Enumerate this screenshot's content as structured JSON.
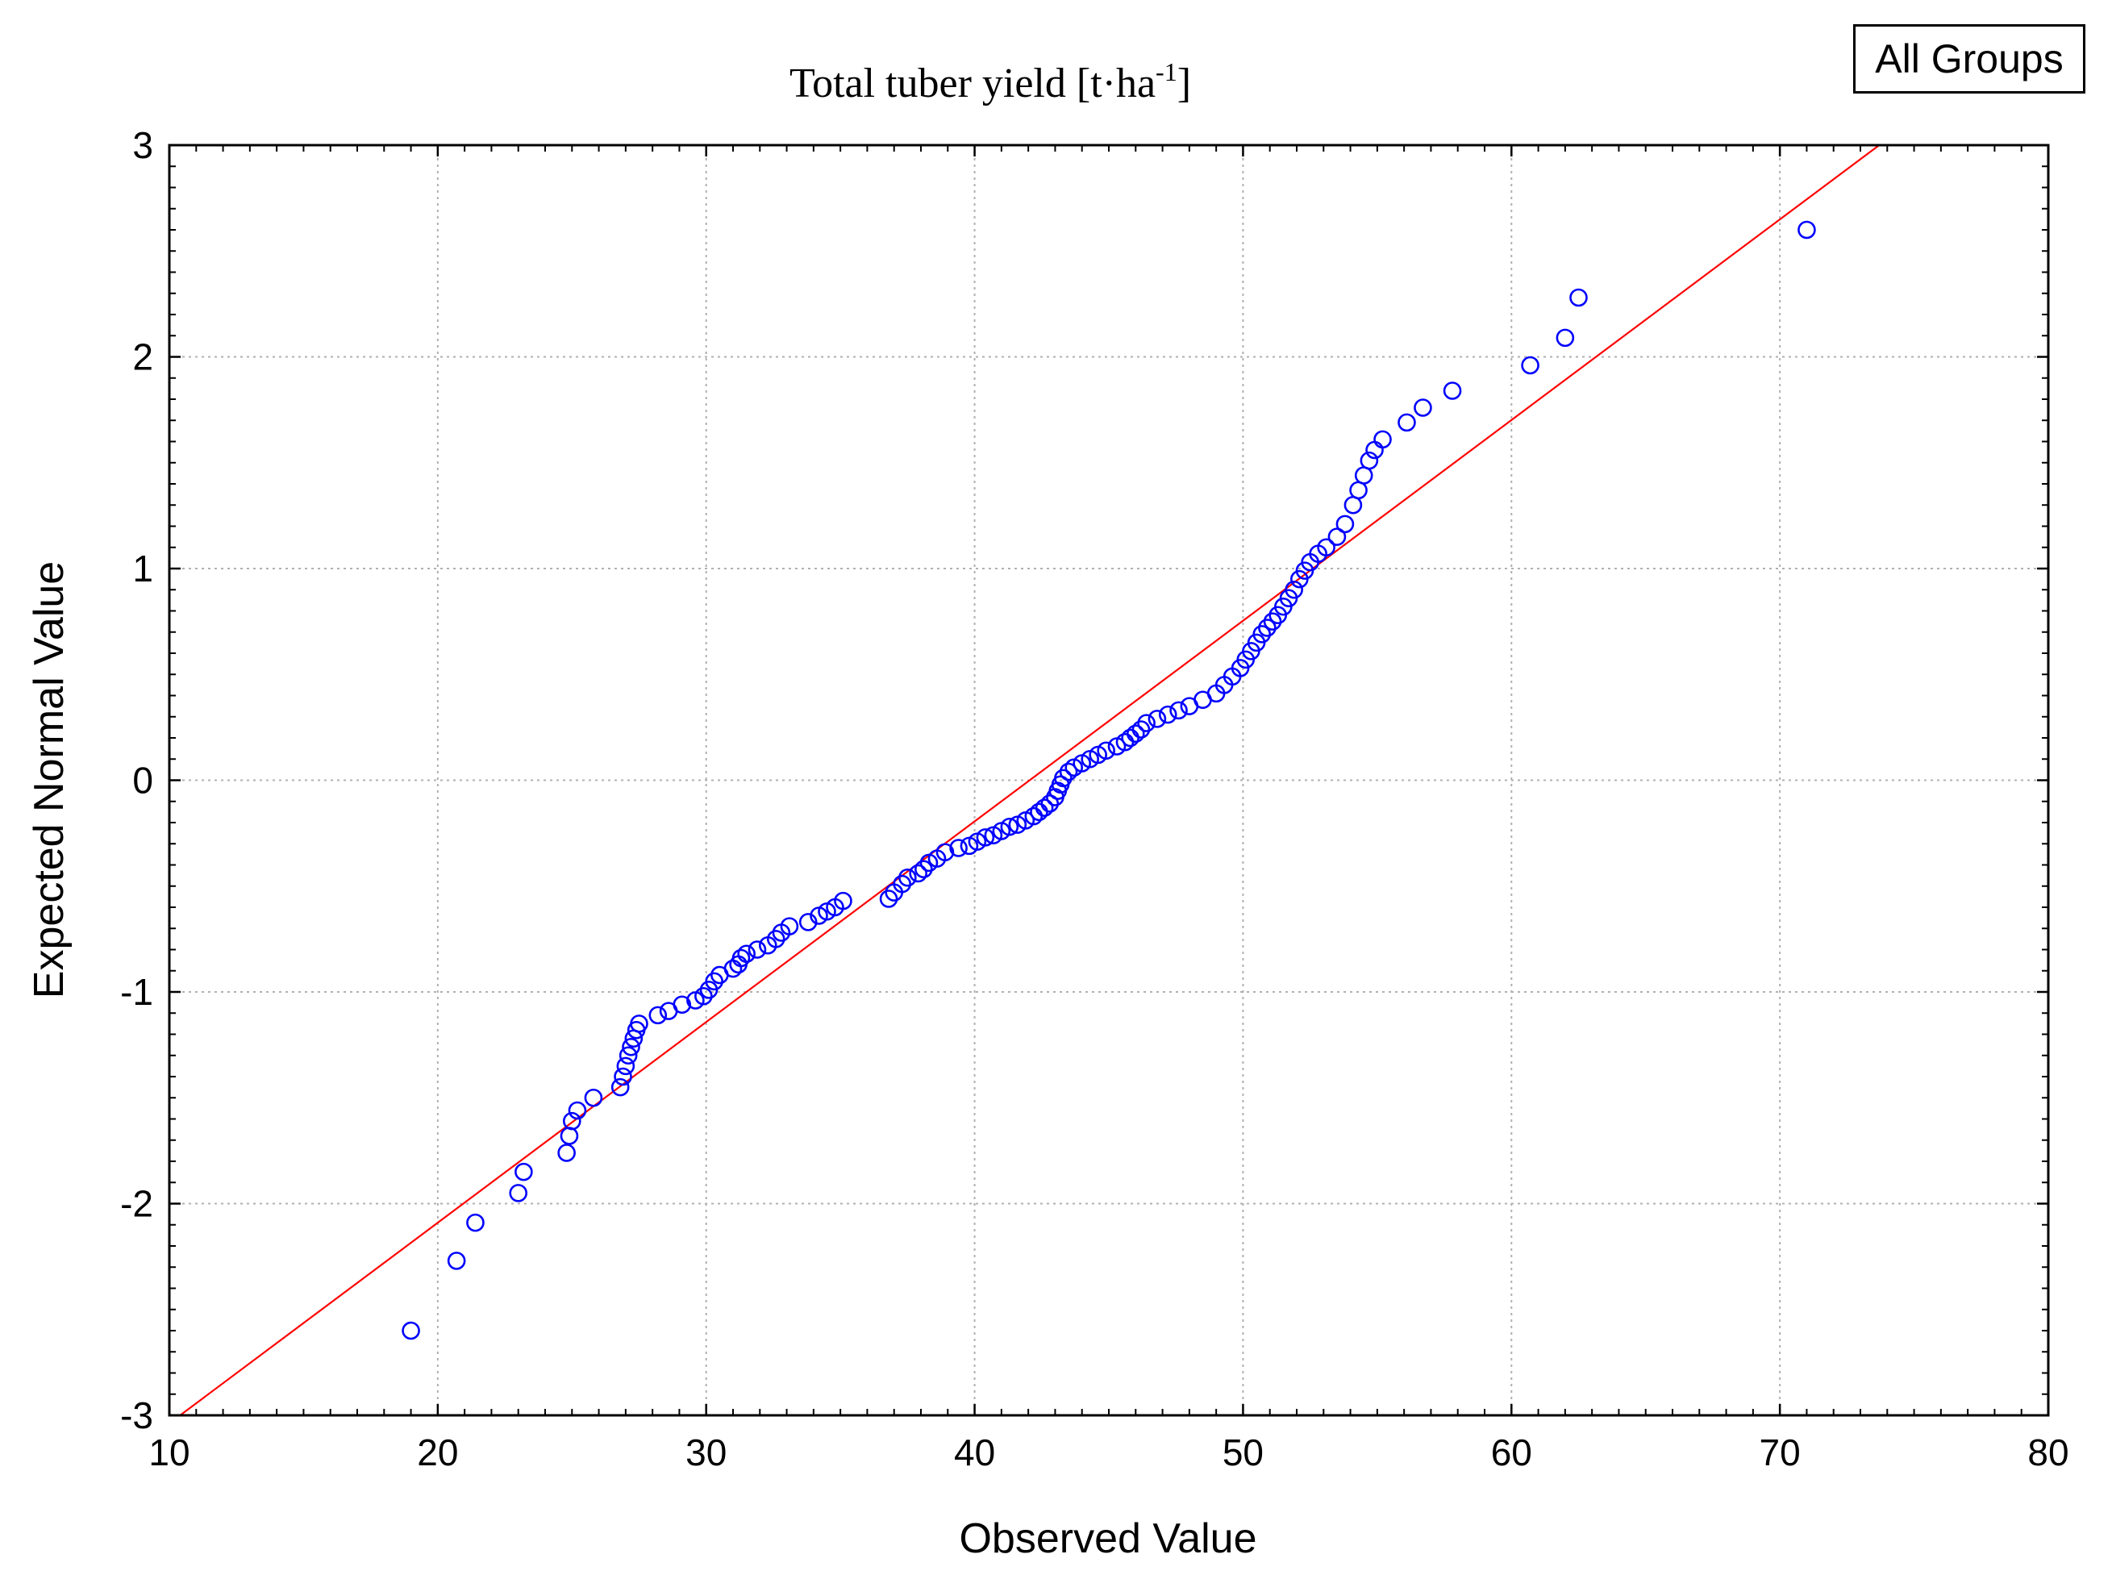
{
  "chart_data": {
    "type": "scatter",
    "title_main": "Total tuber yield  [t·ha",
    "title_sup": "-1",
    "title_end": "]",
    "xlabel": "Observed Value",
    "ylabel": "Expected Normal Value",
    "legend": "All Groups",
    "xlim": [
      10,
      80
    ],
    "ylim": [
      -3,
      3
    ],
    "xticks": [
      10,
      20,
      30,
      40,
      50,
      60,
      70,
      80
    ],
    "yticks": [
      -3,
      -2,
      -1,
      0,
      1,
      2,
      3
    ],
    "grid": true,
    "colors": {
      "points": "#0000ff",
      "line": "#ff0000",
      "grid": "#b0b0b0",
      "axis": "#000000"
    },
    "reference_line": {
      "x1": 10.4,
      "y1": -3.0,
      "x2": 73.7,
      "y2": 3.0
    },
    "points": [
      [
        19.0,
        -2.6
      ],
      [
        20.7,
        -2.27
      ],
      [
        21.4,
        -2.09
      ],
      [
        23.0,
        -1.95
      ],
      [
        23.2,
        -1.85
      ],
      [
        24.8,
        -1.76
      ],
      [
        24.9,
        -1.68
      ],
      [
        25.0,
        -1.61
      ],
      [
        25.2,
        -1.56
      ],
      [
        25.8,
        -1.5
      ],
      [
        26.8,
        -1.45
      ],
      [
        26.9,
        -1.4
      ],
      [
        27.0,
        -1.35
      ],
      [
        27.1,
        -1.3
      ],
      [
        27.2,
        -1.26
      ],
      [
        27.3,
        -1.22
      ],
      [
        27.4,
        -1.18
      ],
      [
        27.5,
        -1.15
      ],
      [
        28.2,
        -1.11
      ],
      [
        28.6,
        -1.09
      ],
      [
        29.1,
        -1.06
      ],
      [
        29.6,
        -1.04
      ],
      [
        29.9,
        -1.02
      ],
      [
        30.1,
        -0.99
      ],
      [
        30.3,
        -0.95
      ],
      [
        30.5,
        -0.92
      ],
      [
        31.0,
        -0.89
      ],
      [
        31.2,
        -0.87
      ],
      [
        31.3,
        -0.84
      ],
      [
        31.5,
        -0.82
      ],
      [
        31.9,
        -0.8
      ],
      [
        32.3,
        -0.78
      ],
      [
        32.6,
        -0.75
      ],
      [
        32.8,
        -0.72
      ],
      [
        33.1,
        -0.69
      ],
      [
        33.8,
        -0.67
      ],
      [
        34.2,
        -0.64
      ],
      [
        34.5,
        -0.62
      ],
      [
        34.8,
        -0.6
      ],
      [
        35.1,
        -0.57
      ],
      [
        36.8,
        -0.56
      ],
      [
        37.0,
        -0.53
      ],
      [
        37.3,
        -0.49
      ],
      [
        37.5,
        -0.46
      ],
      [
        37.9,
        -0.44
      ],
      [
        38.1,
        -0.42
      ],
      [
        38.3,
        -0.39
      ],
      [
        38.6,
        -0.37
      ],
      [
        38.9,
        -0.34
      ],
      [
        39.4,
        -0.32
      ],
      [
        39.8,
        -0.31
      ],
      [
        40.1,
        -0.29
      ],
      [
        40.4,
        -0.27
      ],
      [
        40.7,
        -0.26
      ],
      [
        41.0,
        -0.24
      ],
      [
        41.3,
        -0.22
      ],
      [
        41.6,
        -0.21
      ],
      [
        41.9,
        -0.19
      ],
      [
        42.2,
        -0.17
      ],
      [
        42.4,
        -0.15
      ],
      [
        42.6,
        -0.13
      ],
      [
        42.8,
        -0.11
      ],
      [
        43.0,
        -0.08
      ],
      [
        43.1,
        -0.05
      ],
      [
        43.2,
        -0.02
      ],
      [
        43.3,
        0.01
      ],
      [
        43.5,
        0.04
      ],
      [
        43.7,
        0.06
      ],
      [
        44.0,
        0.08
      ],
      [
        44.3,
        0.1
      ],
      [
        44.6,
        0.12
      ],
      [
        44.9,
        0.14
      ],
      [
        45.3,
        0.16
      ],
      [
        45.6,
        0.18
      ],
      [
        45.8,
        0.2
      ],
      [
        46.0,
        0.22
      ],
      [
        46.2,
        0.24
      ],
      [
        46.4,
        0.27
      ],
      [
        46.8,
        0.29
      ],
      [
        47.2,
        0.31
      ],
      [
        47.6,
        0.33
      ],
      [
        48.0,
        0.35
      ],
      [
        48.5,
        0.38
      ],
      [
        49.0,
        0.41
      ],
      [
        49.3,
        0.45
      ],
      [
        49.6,
        0.49
      ],
      [
        49.9,
        0.53
      ],
      [
        50.1,
        0.57
      ],
      [
        50.3,
        0.61
      ],
      [
        50.5,
        0.65
      ],
      [
        50.7,
        0.69
      ],
      [
        50.9,
        0.72
      ],
      [
        51.1,
        0.75
      ],
      [
        51.3,
        0.78
      ],
      [
        51.5,
        0.82
      ],
      [
        51.7,
        0.86
      ],
      [
        51.9,
        0.9
      ],
      [
        52.1,
        0.95
      ],
      [
        52.3,
        0.99
      ],
      [
        52.5,
        1.03
      ],
      [
        52.8,
        1.07
      ],
      [
        53.1,
        1.1
      ],
      [
        53.5,
        1.15
      ],
      [
        53.8,
        1.21
      ],
      [
        54.1,
        1.3
      ],
      [
        54.3,
        1.37
      ],
      [
        54.5,
        1.44
      ],
      [
        54.7,
        1.51
      ],
      [
        54.9,
        1.56
      ],
      [
        55.2,
        1.61
      ],
      [
        56.1,
        1.69
      ],
      [
        56.7,
        1.76
      ],
      [
        57.8,
        1.84
      ],
      [
        60.7,
        1.96
      ],
      [
        62.0,
        2.09
      ],
      [
        62.5,
        2.28
      ],
      [
        71.0,
        2.6
      ]
    ]
  }
}
